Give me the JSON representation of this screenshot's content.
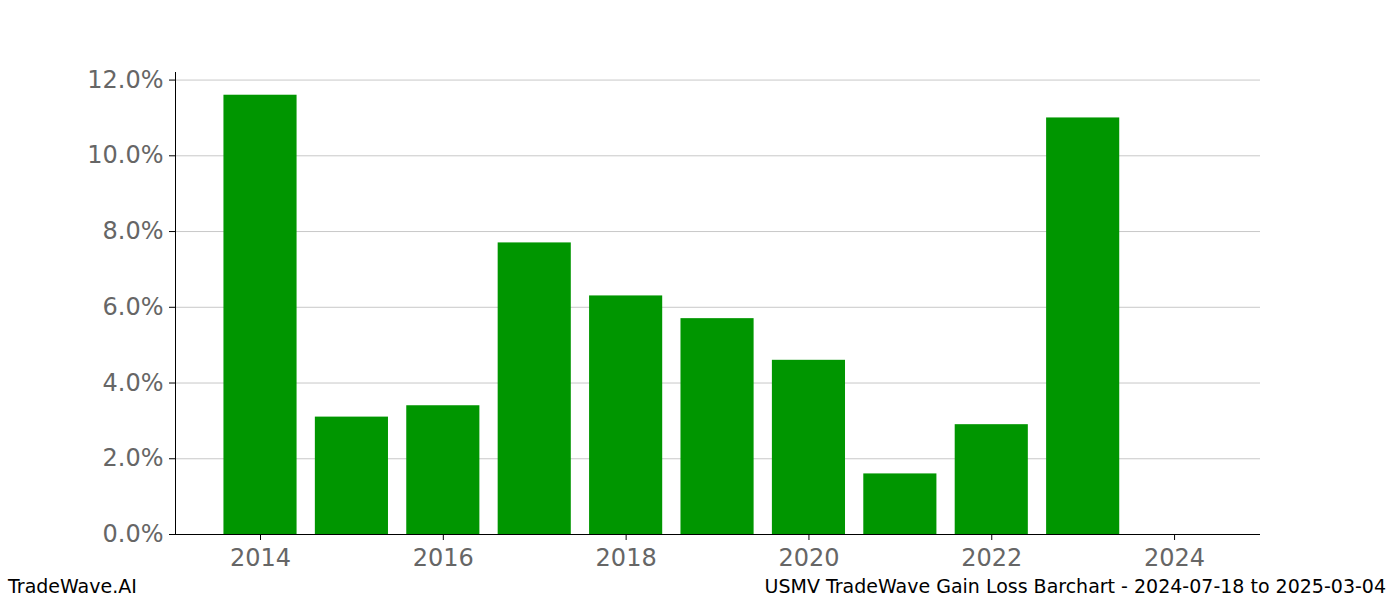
{
  "chart_data": {
    "type": "bar",
    "title": "USMV TradeWave Gain Loss Barchart - 2024-07-18 to 2025-03-04",
    "source": "TradeWave.AI",
    "x": [
      2014,
      2015,
      2016,
      2017,
      2018,
      2019,
      2020,
      2021,
      2022,
      2023
    ],
    "values": [
      11.6,
      3.1,
      3.4,
      7.7,
      6.3,
      5.7,
      4.6,
      1.6,
      2.9,
      11.0
    ],
    "color": "#009600",
    "xlim": [
      2013.07,
      2024.94
    ],
    "xticks": [
      2014,
      2016,
      2018,
      2020,
      2022,
      2024
    ],
    "ylim": [
      0,
      12.2
    ],
    "yticks": [
      {
        "value": 0,
        "label": "0.0%"
      },
      {
        "value": 2,
        "label": "2.0%"
      },
      {
        "value": 4,
        "label": "4.0%"
      },
      {
        "value": 6,
        "label": "6.0%"
      },
      {
        "value": 8,
        "label": "8.0%"
      },
      {
        "value": 10,
        "label": "10.0%"
      },
      {
        "value": 12,
        "label": "12.0%"
      }
    ],
    "grid": true
  }
}
